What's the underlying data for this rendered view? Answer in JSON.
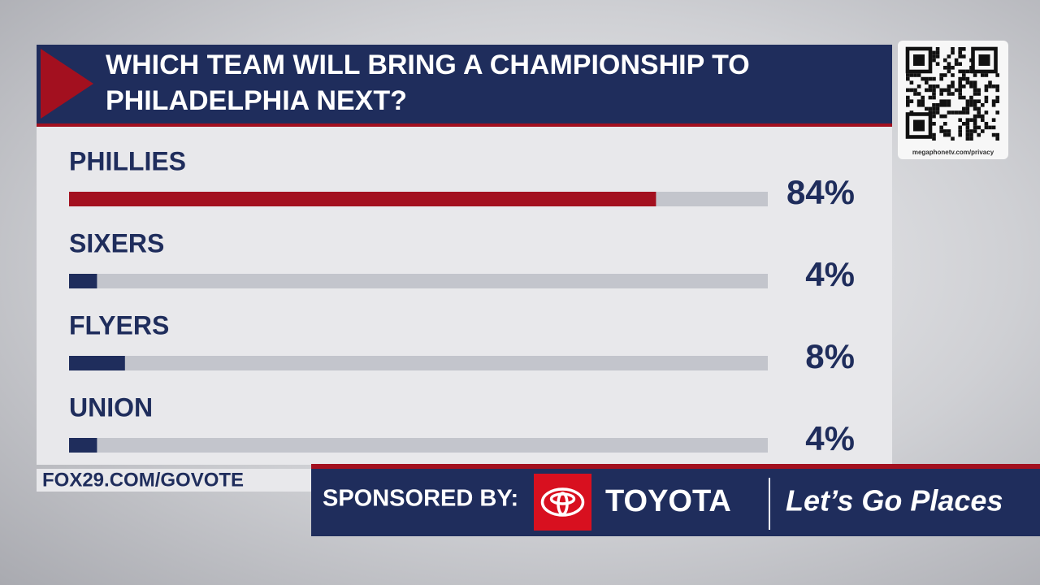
{
  "chart_data": {
    "type": "bar",
    "orientation": "horizontal",
    "title": "WHICH TEAM WILL BRING A CHAMPIONSHIP TO\nPHILADELPHIA NEXT?",
    "categories": [
      "PHILLIES",
      "SIXERS",
      "FLYERS",
      "UNION"
    ],
    "values": [
      84,
      4,
      8,
      4
    ],
    "value_labels": [
      "84%",
      "4%",
      "8%",
      "4%"
    ],
    "colors": [
      "#a3101f",
      "#1f2d5c",
      "#1f2d5c",
      "#1f2d5c"
    ],
    "xlim": [
      0,
      100
    ]
  },
  "qr_caption": "megaphonetv.com/privacy",
  "footer": {
    "url": "FOX29.COM/GOVOTE",
    "sponsored": "SPONSORED BY:",
    "brand": "TOYOTA",
    "slogan": "Let’s Go Places"
  }
}
